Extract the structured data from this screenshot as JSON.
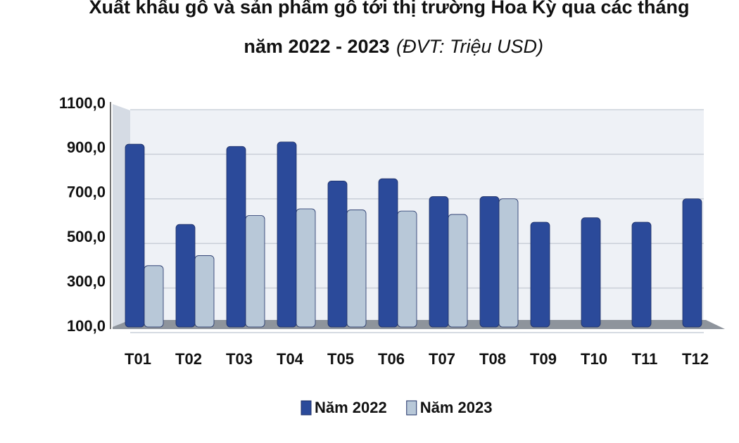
{
  "chart_data": {
    "type": "bar",
    "title": [
      "Xuất khẩu gỗ và sản phẩm gỗ tới thị trường Hoa Kỳ qua các tháng",
      "năm 2022 - 2023"
    ],
    "unit_note": "(ĐVT: Triệu USD)",
    "categories": [
      "T01",
      "T02",
      "T03",
      "T04",
      "T05",
      "T06",
      "T07",
      "T08",
      "T09",
      "T10",
      "T11",
      "T12"
    ],
    "series": [
      {
        "name": "Năm 2022",
        "color": "#2b4a9a",
        "values": [
          920,
          560,
          910,
          930,
          755,
          765,
          685,
          685,
          570,
          590,
          570,
          675
        ]
      },
      {
        "name": "Năm 2023",
        "color": "#b8c8d8",
        "values": [
          375,
          420,
          600,
          630,
          625,
          620,
          605,
          675,
          null,
          null,
          null,
          null
        ]
      }
    ],
    "ylim": [
      100,
      1100
    ],
    "yticks": [
      {
        "value": 100,
        "label": "100,0"
      },
      {
        "value": 300,
        "label": "300,0"
      },
      {
        "value": 500,
        "label": "500,0"
      },
      {
        "value": 700,
        "label": "700,0"
      },
      {
        "value": 900,
        "label": "900,0"
      },
      {
        "value": 1100,
        "label": "1100,0"
      }
    ],
    "grid": true,
    "legend": "bottom"
  }
}
